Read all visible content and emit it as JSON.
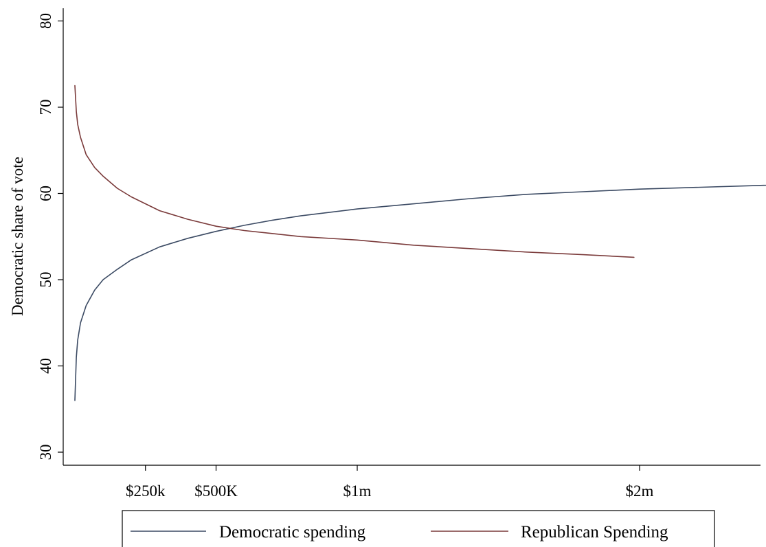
{
  "chart_data": {
    "type": "line",
    "title": "",
    "xlabel": "",
    "ylabel": "Democratic share of vote",
    "ylim": [
      30,
      80
    ],
    "xlim": [
      0,
      2.9
    ],
    "y_ticks": [
      30,
      40,
      50,
      60,
      70,
      80
    ],
    "x_ticks": [
      {
        "value": 0.25,
        "label": "$250k"
      },
      {
        "value": 0.5,
        "label": "$500K"
      },
      {
        "value": 1.0,
        "label": "$1m"
      },
      {
        "value": 2.0,
        "label": "$2m"
      }
    ],
    "x_unit": "millions of dollars",
    "grid": false,
    "legend_position": "bottom",
    "series": [
      {
        "name": "Democratic spending",
        "color": "#3b4a63",
        "x": [
          0.0,
          0.005,
          0.01,
          0.02,
          0.04,
          0.07,
          0.1,
          0.15,
          0.2,
          0.3,
          0.4,
          0.5,
          0.6,
          0.7,
          0.8,
          1.0,
          1.2,
          1.4,
          1.6,
          1.8,
          2.0,
          2.2,
          2.4,
          2.6,
          2.85
        ],
        "values": [
          36.0,
          41.0,
          43.0,
          45.0,
          47.0,
          48.8,
          50.0,
          51.2,
          52.3,
          53.8,
          54.8,
          55.6,
          56.3,
          56.9,
          57.4,
          58.2,
          58.8,
          59.4,
          59.9,
          60.2,
          60.5,
          60.7,
          60.9,
          61.1,
          61.3
        ]
      },
      {
        "name": "Republican Spending",
        "color": "#7a3a3a",
        "x": [
          0.0,
          0.005,
          0.01,
          0.02,
          0.04,
          0.07,
          0.1,
          0.15,
          0.2,
          0.3,
          0.4,
          0.5,
          0.6,
          0.8,
          1.0,
          1.2,
          1.4,
          1.6,
          1.8,
          1.98
        ],
        "values": [
          72.5,
          69.5,
          68.0,
          66.5,
          64.5,
          63.0,
          62.0,
          60.6,
          59.6,
          58.0,
          57.0,
          56.2,
          55.7,
          55.0,
          54.6,
          54.0,
          53.6,
          53.2,
          52.9,
          52.6
        ]
      }
    ]
  }
}
